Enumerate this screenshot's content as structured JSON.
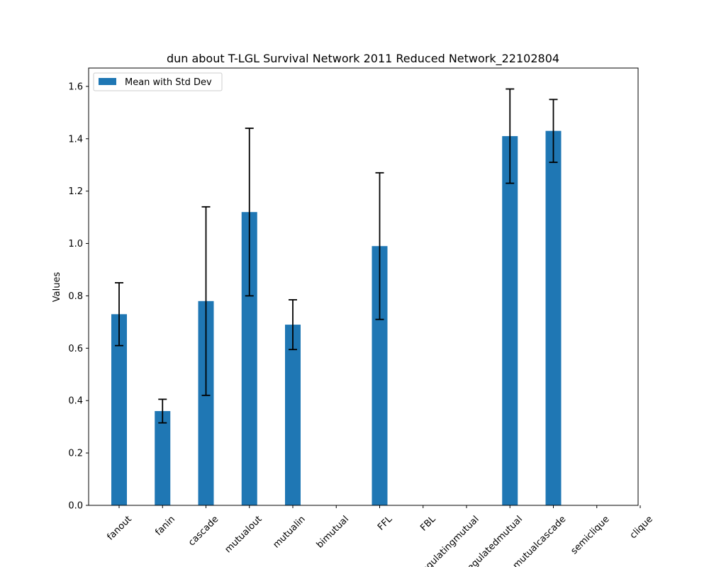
{
  "chart_data": {
    "type": "bar",
    "title": "dun about T-LGL Survival Network 2011 Reduced Network_22102804",
    "xlabel": "",
    "ylabel": "Values",
    "ylim": [
      0,
      1.67
    ],
    "yticks": [
      "0.0",
      "0.2",
      "0.4",
      "0.6",
      "0.8",
      "1.0",
      "1.2",
      "1.4",
      "1.6"
    ],
    "ytick_values": [
      0,
      0.2,
      0.4,
      0.6,
      0.8,
      1.0,
      1.2,
      1.4,
      1.6
    ],
    "categories": [
      "fanout",
      "fanin",
      "cascade",
      "mutualout",
      "mutualin",
      "bimutual",
      "FFL",
      "FBL",
      "regulatingmutual",
      "regulatedmutual",
      "mutualcascade",
      "semiclique",
      "clique"
    ],
    "values": [
      0.73,
      0.36,
      0.78,
      1.12,
      0.69,
      0,
      0.99,
      0,
      0,
      1.41,
      1.43,
      0,
      0
    ],
    "errors": [
      0.12,
      0.045,
      0.36,
      0.32,
      0.095,
      0,
      0.28,
      0,
      0,
      0.18,
      0.12,
      0,
      0
    ],
    "legend": [
      "Mean with Std Dev"
    ],
    "legend_position": "upper-left",
    "colors": {
      "bar": "#1f77b4",
      "error": "#000000"
    },
    "grid": false
  }
}
